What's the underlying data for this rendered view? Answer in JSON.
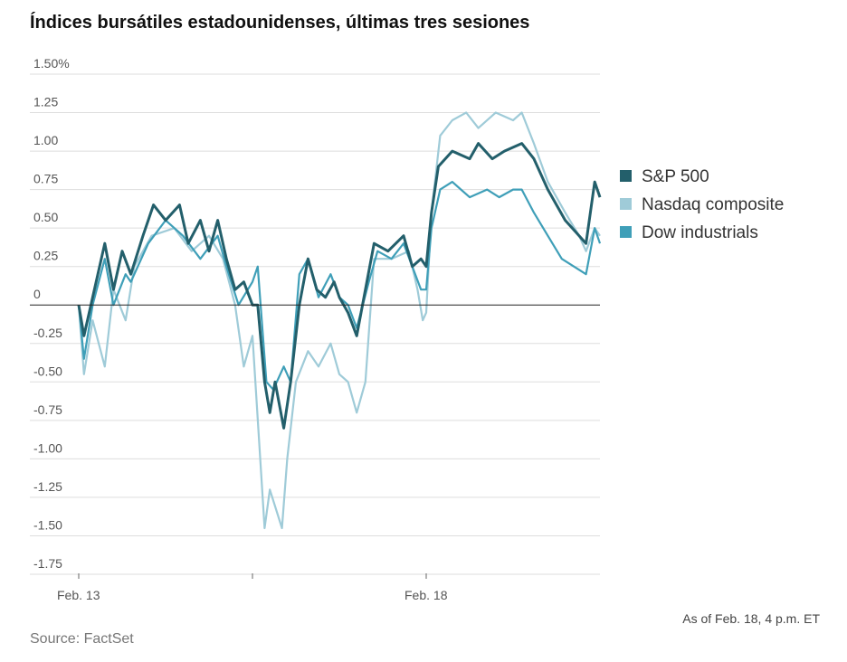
{
  "chart_data": {
    "type": "line",
    "title": "Índices bursátiles estadounidenses, últimas tres sesiones",
    "xlabel": "",
    "ylabel": "",
    "x_unit": "trading sessions since Feb. 13 open",
    "xlim": [
      0,
      3
    ],
    "ylim": [
      -1.75,
      1.5
    ],
    "y_ticks": [
      1.5,
      1.25,
      1.0,
      0.75,
      0.5,
      0.25,
      0,
      -0.25,
      -0.5,
      -0.75,
      -1.0,
      -1.25,
      -1.5,
      -1.75
    ],
    "y_tick_labels": [
      "1.50%",
      "1.25",
      "1.00",
      "0.75",
      "0.50",
      "0.25",
      "0",
      "-0.25",
      "-0.50",
      "-0.75",
      "-1.00",
      "-1.25",
      "-1.50",
      "-1.75"
    ],
    "x_ticks": [
      0,
      1,
      2
    ],
    "x_tick_labels": [
      "Feb. 13",
      "",
      "Feb. 18"
    ],
    "grid": true,
    "legend_position": "right",
    "series": [
      {
        "name": "S&P 500",
        "color": "#235f6b",
        "x": [
          0,
          0.03,
          0.09,
          0.15,
          0.2,
          0.25,
          0.3,
          0.37,
          0.43,
          0.5,
          0.58,
          0.63,
          0.7,
          0.75,
          0.8,
          0.85,
          0.9,
          0.95,
          1.0,
          1.03,
          1.07,
          1.1,
          1.13,
          1.18,
          1.22,
          1.27,
          1.32,
          1.37,
          1.42,
          1.47,
          1.5,
          1.55,
          1.6,
          1.65,
          1.7,
          1.78,
          1.87,
          1.92,
          1.97,
          2.0,
          2.03,
          2.07,
          2.15,
          2.25,
          2.3,
          2.38,
          2.45,
          2.55,
          2.62,
          2.7,
          2.8,
          2.88,
          2.92,
          2.97,
          3.0
        ],
        "values": [
          0,
          -0.2,
          0.1,
          0.4,
          0.1,
          0.35,
          0.2,
          0.45,
          0.65,
          0.55,
          0.65,
          0.4,
          0.55,
          0.35,
          0.55,
          0.3,
          0.1,
          0.15,
          0.0,
          0.0,
          -0.5,
          -0.7,
          -0.5,
          -0.8,
          -0.5,
          0.0,
          0.3,
          0.1,
          0.05,
          0.15,
          0.05,
          -0.05,
          -0.2,
          0.1,
          0.4,
          0.35,
          0.45,
          0.25,
          0.3,
          0.25,
          0.6,
          0.9,
          1.0,
          0.95,
          1.05,
          0.95,
          1.0,
          1.05,
          0.95,
          0.75,
          0.55,
          0.45,
          0.4,
          0.8,
          0.7
        ]
      },
      {
        "name": "Nasdaq composite",
        "color": "#9fcbd8",
        "x": [
          0,
          0.03,
          0.08,
          0.15,
          0.2,
          0.27,
          0.32,
          0.42,
          0.55,
          0.65,
          0.75,
          0.83,
          0.9,
          0.95,
          1.0,
          1.07,
          1.1,
          1.17,
          1.2,
          1.25,
          1.32,
          1.38,
          1.45,
          1.5,
          1.55,
          1.6,
          1.65,
          1.7,
          1.8,
          1.9,
          1.95,
          1.98,
          2.0,
          2.03,
          2.08,
          2.15,
          2.23,
          2.3,
          2.4,
          2.5,
          2.55,
          2.62,
          2.7,
          2.8,
          2.88,
          2.92,
          2.97,
          3.0
        ],
        "values": [
          0,
          -0.45,
          -0.1,
          -0.4,
          0.1,
          -0.1,
          0.25,
          0.45,
          0.5,
          0.35,
          0.45,
          0.3,
          0.0,
          -0.4,
          -0.2,
          -1.45,
          -1.2,
          -1.45,
          -1.0,
          -0.5,
          -0.3,
          -0.4,
          -0.25,
          -0.45,
          -0.5,
          -0.7,
          -0.5,
          0.3,
          0.3,
          0.35,
          0.1,
          -0.1,
          -0.05,
          0.6,
          1.1,
          1.2,
          1.25,
          1.15,
          1.25,
          1.2,
          1.25,
          1.05,
          0.8,
          0.6,
          0.45,
          0.35,
          0.5,
          0.45
        ]
      },
      {
        "name": "Dow industrials",
        "color": "#3f9fb8",
        "x": [
          0,
          0.03,
          0.08,
          0.15,
          0.2,
          0.27,
          0.3,
          0.4,
          0.5,
          0.6,
          0.7,
          0.8,
          0.85,
          0.92,
          1.0,
          1.03,
          1.08,
          1.12,
          1.18,
          1.22,
          1.27,
          1.32,
          1.38,
          1.45,
          1.5,
          1.55,
          1.6,
          1.67,
          1.72,
          1.8,
          1.87,
          1.92,
          1.97,
          2.0,
          2.03,
          2.08,
          2.15,
          2.25,
          2.35,
          2.42,
          2.5,
          2.55,
          2.62,
          2.7,
          2.78,
          2.85,
          2.92,
          2.97,
          3.0
        ],
        "values": [
          0,
          -0.35,
          0,
          0.3,
          0,
          0.2,
          0.15,
          0.4,
          0.55,
          0.45,
          0.3,
          0.45,
          0.25,
          0.0,
          0.15,
          0.25,
          -0.5,
          -0.55,
          -0.4,
          -0.5,
          0.2,
          0.3,
          0.05,
          0.2,
          0.05,
          0.0,
          -0.15,
          0.15,
          0.35,
          0.3,
          0.4,
          0.25,
          0.1,
          0.1,
          0.5,
          0.75,
          0.8,
          0.7,
          0.75,
          0.7,
          0.75,
          0.75,
          0.6,
          0.45,
          0.3,
          0.25,
          0.2,
          0.5,
          0.4
        ]
      }
    ],
    "annotations": [
      "As of Feb. 18, 4 p.m. ET"
    ],
    "source": "Source: FactSet"
  }
}
